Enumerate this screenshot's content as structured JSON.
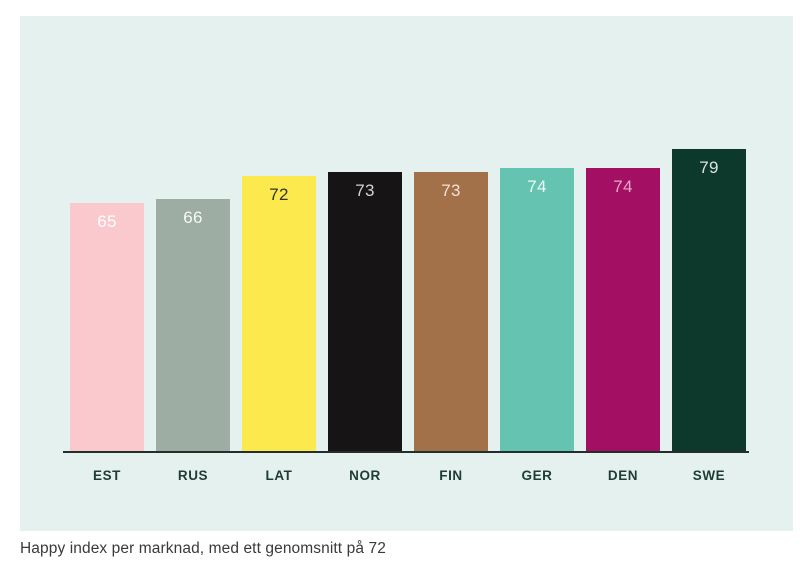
{
  "panel": {
    "background_color": "#e5f1ee"
  },
  "chart_data": {
    "type": "bar",
    "title": "",
    "caption": "Happy index per marknad, med ett genomsnitt på 72",
    "categories": [
      "EST",
      "RUS",
      "LAT",
      "NOR",
      "FIN",
      "GER",
      "DEN",
      "SWE"
    ],
    "values": [
      65,
      66,
      72,
      73,
      73,
      74,
      74,
      79
    ],
    "average": 72,
    "ylim": [
      0,
      79
    ],
    "grid": false,
    "legend": "none",
    "value_label_position": "inside-top",
    "bar_colors": [
      "#f9c9cd",
      "#9dada4",
      "#fbe94e",
      "#171416",
      "#a2714a",
      "#64c3b1",
      "#a30f62",
      "#0c392c"
    ],
    "value_label_colors": [
      "#ffffff",
      "#f5faf8",
      "#32361f",
      "#d4d2d2",
      "#f4e0d4",
      "#eefaf7",
      "#e8a7c6",
      "#d9e4dd"
    ],
    "axis_line_color": "#232f2a",
    "tick_label_color": "#1f3d35",
    "caption_color": "#3a3a3a"
  }
}
